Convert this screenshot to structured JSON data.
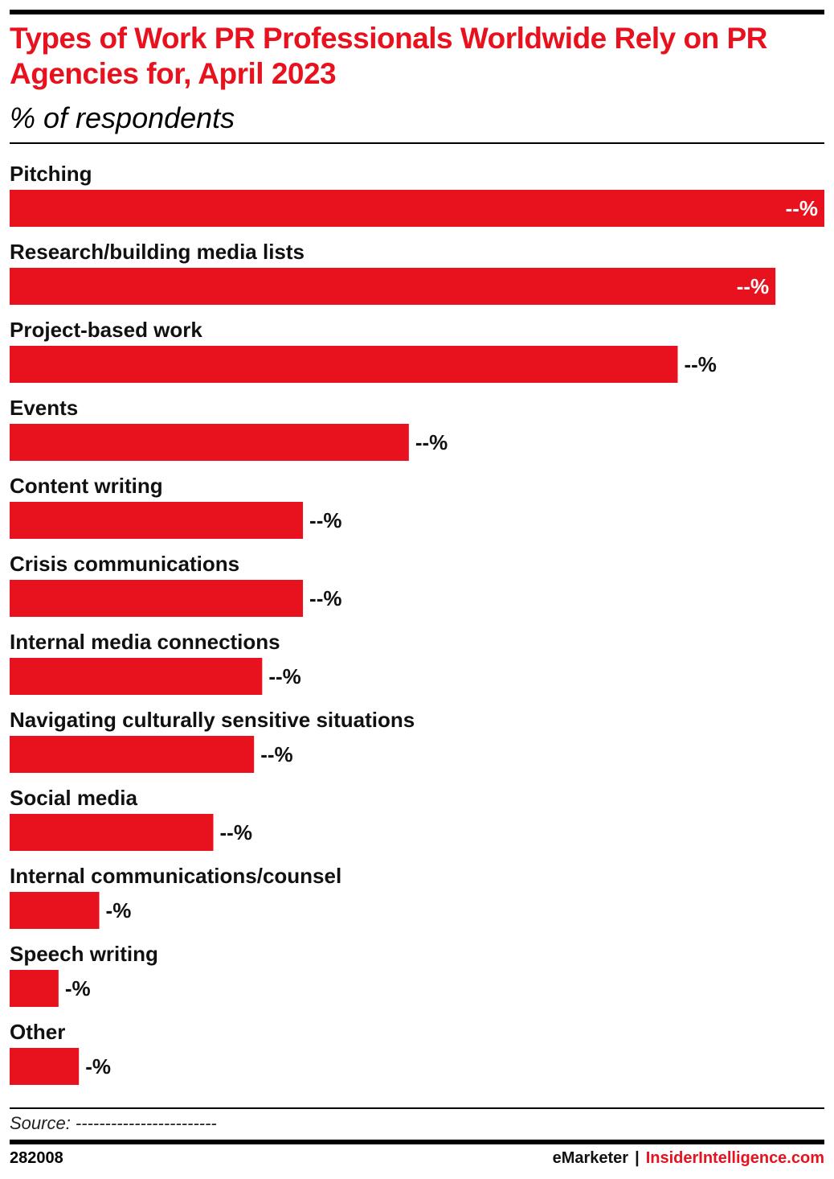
{
  "header": {
    "title": "Types of Work PR Professionals Worldwide Rely on PR Agencies for, April 2023",
    "subtitle": "% of respondents"
  },
  "footer": {
    "source": "Source: ------------------------",
    "chart_id": "282008",
    "brand_emarketer": "eMarketer",
    "brand_separator": "|",
    "brand_insider": "InsiderIntelligence.com"
  },
  "colors": {
    "bar": "#e8111e",
    "accent": "#e8111e",
    "text": "#000000"
  },
  "chart_data": {
    "type": "bar",
    "orientation": "horizontal",
    "title": "Types of Work PR Professionals Worldwide Rely on PR Agencies for, April 2023",
    "subtitle": "% of respondents",
    "xlabel": "",
    "ylabel": "",
    "grid": false,
    "categories": [
      "Pitching",
      "Research/building media lists",
      "Project-based work",
      "Events",
      "Content writing",
      "Crisis communications",
      "Internal media connections",
      "Navigating culturally sensitive situations",
      "Social media",
      "Internal communications/counsel",
      "Speech writing",
      "Other"
    ],
    "values": [
      100,
      94,
      82,
      49,
      36,
      36,
      31,
      30,
      25,
      11,
      6,
      8.5
    ],
    "value_labels": [
      "--%",
      "--%",
      "--%",
      "--%",
      "--%",
      "--%",
      "--%",
      "--%",
      "--%",
      "-%",
      "-%",
      "-%"
    ],
    "xlim": [
      0,
      100
    ]
  }
}
